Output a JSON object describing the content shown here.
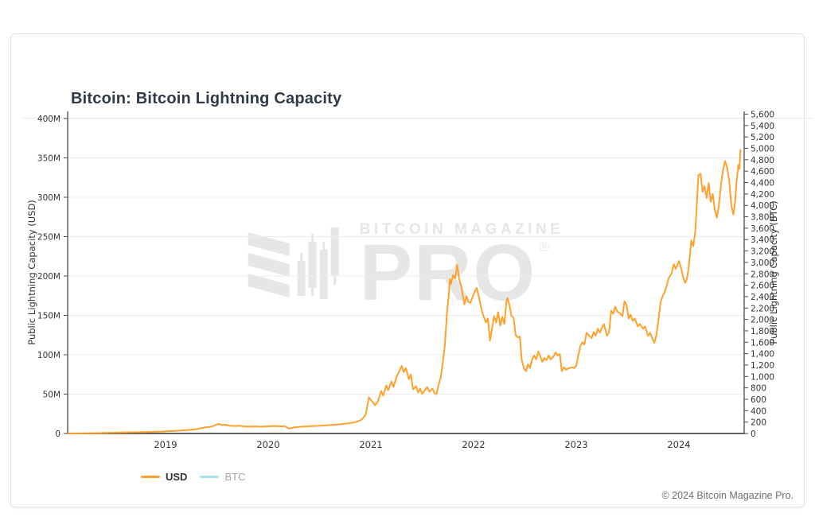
{
  "header": {
    "title": "Bitcoin: Bitcoin Lightning Capacity"
  },
  "watermark": {
    "brand": "BITCOIN MAGAZINE",
    "pro": "PRO",
    "registered": "®"
  },
  "legend": {
    "items": [
      {
        "label": "USD",
        "color": "#FFA12C",
        "active": true
      },
      {
        "label": "BTC",
        "color": "#A8E0EF",
        "active": false
      }
    ]
  },
  "footer": {
    "copyright": "© 2024 Bitcoin Magazine Pro."
  },
  "chart_data": {
    "type": "line",
    "title": "Bitcoin: Bitcoin Lightning Capacity",
    "grid": true,
    "legend_position": "bottom-left",
    "colors": {
      "grid": "#ececec",
      "axis": "#4a4a4a",
      "usd_line": "#FFA12C",
      "btc_line": "#A8E0EF",
      "watermark": "#e6e6e6"
    },
    "x_axis": {
      "ticks": [
        2019,
        2020,
        2021,
        2022,
        2023,
        2024
      ],
      "range": [
        2018.05,
        2024.6
      ]
    },
    "y_axis_left": {
      "label": "Public Lightning Capacity (USD)",
      "unit": "million USD",
      "ticks": [
        "0",
        "50M",
        "100M",
        "150M",
        "200M",
        "250M",
        "300M",
        "350M",
        "400M"
      ],
      "values": [
        0,
        50,
        100,
        150,
        200,
        250,
        300,
        350,
        400
      ],
      "range": [
        0,
        408
      ]
    },
    "y_axis_right": {
      "label": "Public Lightning Capacity (BTC)",
      "unit": "BTC",
      "min": 0,
      "max": 5600,
      "step": 200
    },
    "series": [
      {
        "name": "USD",
        "color": "#FFA12C",
        "visible": true,
        "units": "million USD vs year (decimal)",
        "points": [
          [
            2018.05,
            0.1
          ],
          [
            2018.2,
            0.3
          ],
          [
            2018.4,
            0.7
          ],
          [
            2018.6,
            1.2
          ],
          [
            2018.8,
            1.8
          ],
          [
            2018.95,
            2.4
          ],
          [
            2019.05,
            3.0
          ],
          [
            2019.15,
            3.8
          ],
          [
            2019.25,
            4.8
          ],
          [
            2019.32,
            6.0
          ],
          [
            2019.38,
            7.6
          ],
          [
            2019.43,
            8.4
          ],
          [
            2019.46,
            9.2
          ],
          [
            2019.49,
            11.0
          ],
          [
            2019.52,
            12.2
          ],
          [
            2019.55,
            10.6
          ],
          [
            2019.58,
            11.2
          ],
          [
            2019.62,
            10.0
          ],
          [
            2019.67,
            9.5
          ],
          [
            2019.72,
            9.8
          ],
          [
            2019.77,
            9.0
          ],
          [
            2019.82,
            8.7
          ],
          [
            2019.87,
            9.0
          ],
          [
            2019.92,
            8.6
          ],
          [
            2019.97,
            8.9
          ],
          [
            2020.02,
            9.2
          ],
          [
            2020.07,
            9.5
          ],
          [
            2020.12,
            9.0
          ],
          [
            2020.16,
            9.4
          ],
          [
            2020.2,
            6.3
          ],
          [
            2020.25,
            7.6
          ],
          [
            2020.3,
            8.3
          ],
          [
            2020.36,
            8.9
          ],
          [
            2020.42,
            9.3
          ],
          [
            2020.48,
            9.6
          ],
          [
            2020.54,
            10.1
          ],
          [
            2020.6,
            10.7
          ],
          [
            2020.66,
            11.2
          ],
          [
            2020.72,
            12.1
          ],
          [
            2020.78,
            12.8
          ],
          [
            2020.83,
            13.8
          ],
          [
            2020.87,
            15.2
          ],
          [
            2020.91,
            17.6
          ],
          [
            2020.95,
            24
          ],
          [
            2020.98,
            46
          ],
          [
            2021.01,
            41
          ],
          [
            2021.04,
            36
          ],
          [
            2021.07,
            41
          ],
          [
            2021.1,
            54
          ],
          [
            2021.12,
            48
          ],
          [
            2021.15,
            61
          ],
          [
            2021.17,
            55
          ],
          [
            2021.2,
            66
          ],
          [
            2021.22,
            59
          ],
          [
            2021.25,
            72
          ],
          [
            2021.28,
            80
          ],
          [
            2021.3,
            86
          ],
          [
            2021.32,
            78
          ],
          [
            2021.34,
            83
          ],
          [
            2021.37,
            69
          ],
          [
            2021.39,
            75
          ],
          [
            2021.41,
            56
          ],
          [
            2021.44,
            60
          ],
          [
            2021.46,
            52
          ],
          [
            2021.48,
            57
          ],
          [
            2021.5,
            50
          ],
          [
            2021.53,
            56
          ],
          [
            2021.55,
            59
          ],
          [
            2021.57,
            53
          ],
          [
            2021.6,
            57
          ],
          [
            2021.62,
            51
          ],
          [
            2021.64,
            50
          ],
          [
            2021.66,
            62
          ],
          [
            2021.68,
            71
          ],
          [
            2021.7,
            90
          ],
          [
            2021.72,
            112
          ],
          [
            2021.74,
            152
          ],
          [
            2021.76,
            178
          ],
          [
            2021.77,
            196
          ],
          [
            2021.78,
            190
          ],
          [
            2021.8,
            201
          ],
          [
            2021.82,
            197
          ],
          [
            2021.84,
            214
          ],
          [
            2021.86,
            196
          ],
          [
            2021.88,
            187
          ],
          [
            2021.9,
            172
          ],
          [
            2021.91,
            164
          ],
          [
            2021.93,
            174
          ],
          [
            2021.95,
            167
          ],
          [
            2021.97,
            166
          ],
          [
            2022.0,
            177
          ],
          [
            2022.03,
            185
          ],
          [
            2022.06,
            169
          ],
          [
            2022.08,
            156
          ],
          [
            2022.1,
            148
          ],
          [
            2022.12,
            141
          ],
          [
            2022.14,
            146
          ],
          [
            2022.16,
            118
          ],
          [
            2022.18,
            133
          ],
          [
            2022.2,
            149
          ],
          [
            2022.22,
            141
          ],
          [
            2022.24,
            154
          ],
          [
            2022.26,
            137
          ],
          [
            2022.28,
            148
          ],
          [
            2022.3,
            139
          ],
          [
            2022.32,
            168
          ],
          [
            2022.33,
            172
          ],
          [
            2022.35,
            163
          ],
          [
            2022.37,
            149
          ],
          [
            2022.39,
            147
          ],
          [
            2022.41,
            125
          ],
          [
            2022.43,
            122
          ],
          [
            2022.45,
            123
          ],
          [
            2022.47,
            93
          ],
          [
            2022.49,
            83
          ],
          [
            2022.51,
            79
          ],
          [
            2022.53,
            88
          ],
          [
            2022.55,
            83
          ],
          [
            2022.57,
            94
          ],
          [
            2022.59,
            99
          ],
          [
            2022.61,
            94
          ],
          [
            2022.63,
            104
          ],
          [
            2022.65,
            98
          ],
          [
            2022.67,
            91
          ],
          [
            2022.69,
            96
          ],
          [
            2022.71,
            93
          ],
          [
            2022.73,
            99
          ],
          [
            2022.75,
            94
          ],
          [
            2022.78,
            98
          ],
          [
            2022.8,
            103
          ],
          [
            2022.82,
            99
          ],
          [
            2022.84,
            101
          ],
          [
            2022.86,
            79
          ],
          [
            2022.88,
            84
          ],
          [
            2022.9,
            81
          ],
          [
            2022.93,
            83
          ],
          [
            2022.96,
            84
          ],
          [
            2022.98,
            83
          ],
          [
            2023.0,
            86
          ],
          [
            2023.02,
            99
          ],
          [
            2023.04,
            111
          ],
          [
            2023.06,
            116
          ],
          [
            2023.08,
            113
          ],
          [
            2023.1,
            128
          ],
          [
            2023.12,
            125
          ],
          [
            2023.15,
            121
          ],
          [
            2023.17,
            129
          ],
          [
            2023.19,
            124
          ],
          [
            2023.21,
            133
          ],
          [
            2023.23,
            128
          ],
          [
            2023.25,
            134
          ],
          [
            2023.27,
            139
          ],
          [
            2023.3,
            124
          ],
          [
            2023.32,
            129
          ],
          [
            2023.34,
            156
          ],
          [
            2023.36,
            152
          ],
          [
            2023.38,
            161
          ],
          [
            2023.4,
            155
          ],
          [
            2023.43,
            152
          ],
          [
            2023.45,
            149
          ],
          [
            2023.47,
            168
          ],
          [
            2023.49,
            163
          ],
          [
            2023.51,
            146
          ],
          [
            2023.53,
            151
          ],
          [
            2023.55,
            143
          ],
          [
            2023.57,
            146
          ],
          [
            2023.6,
            136
          ],
          [
            2023.62,
            139
          ],
          [
            2023.65,
            133
          ],
          [
            2023.67,
            136
          ],
          [
            2023.7,
            124
          ],
          [
            2023.72,
            128
          ],
          [
            2023.74,
            121
          ],
          [
            2023.76,
            115
          ],
          [
            2023.78,
            124
          ],
          [
            2023.8,
            143
          ],
          [
            2023.82,
            166
          ],
          [
            2023.84,
            174
          ],
          [
            2023.86,
            179
          ],
          [
            2023.88,
            187
          ],
          [
            2023.9,
            197
          ],
          [
            2023.93,
            204
          ],
          [
            2023.95,
            215
          ],
          [
            2023.97,
            209
          ],
          [
            2024.0,
            219
          ],
          [
            2024.02,
            211
          ],
          [
            2024.04,
            199
          ],
          [
            2024.06,
            191
          ],
          [
            2024.08,
            197
          ],
          [
            2024.1,
            216
          ],
          [
            2024.12,
            245
          ],
          [
            2024.14,
            238
          ],
          [
            2024.16,
            257
          ],
          [
            2024.17,
            279
          ],
          [
            2024.19,
            328
          ],
          [
            2024.21,
            330
          ],
          [
            2024.23,
            307
          ],
          [
            2024.25,
            314
          ],
          [
            2024.27,
            299
          ],
          [
            2024.29,
            318
          ],
          [
            2024.31,
            294
          ],
          [
            2024.33,
            304
          ],
          [
            2024.35,
            284
          ],
          [
            2024.37,
            274
          ],
          [
            2024.39,
            290
          ],
          [
            2024.41,
            316
          ],
          [
            2024.43,
            335
          ],
          [
            2024.45,
            346
          ],
          [
            2024.47,
            338
          ],
          [
            2024.49,
            321
          ],
          [
            2024.51,
            290
          ],
          [
            2024.53,
            278
          ],
          [
            2024.55,
            297
          ],
          [
            2024.56,
            318
          ],
          [
            2024.58,
            341
          ],
          [
            2024.59,
            336
          ],
          [
            2024.6,
            360
          ]
        ]
      },
      {
        "name": "BTC",
        "color": "#A8E0EF",
        "visible": false,
        "points": []
      }
    ]
  }
}
